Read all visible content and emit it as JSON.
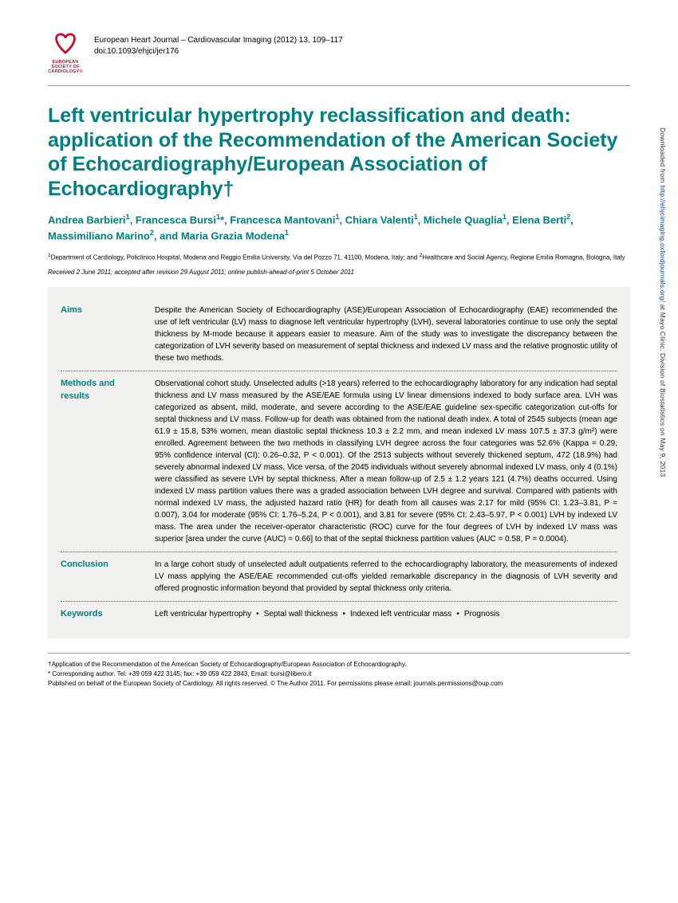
{
  "colors": {
    "teal": "#008080",
    "logo_red": "#c8102e",
    "abstract_bg": "#f0f0ee",
    "rule": "#999999",
    "link": "#0645ad"
  },
  "logo": {
    "org_line1": "EUROPEAN",
    "org_line2": "SOCIETY OF",
    "org_line3": "CARDIOLOGY®"
  },
  "journal": {
    "citation": "European Heart Journal – Cardiovascular Imaging (2012) 13, 109–117",
    "doi": "doi:10.1093/ehjci/jer176"
  },
  "title": "Left ventricular hypertrophy reclassification and death: application of the Recommendation of the American Society of Echocardiography/European Association of Echocardiography†",
  "authors_html": "Andrea Barbieri<sup>1</sup>, Francesca Bursi<sup>1</sup>*, Francesca Mantovani<sup>1</sup>, Chiara Valenti<sup>1</sup>, Michele Quaglia<sup>1</sup>, Elena Berti<sup>2</sup>, Massimiliano Marino<sup>2</sup>, and Maria Grazia Modena<sup>1</sup>",
  "affiliations_html": "<sup>1</sup>Department of Cardiology, Policlinico Hospital, Modena and Reggio Emilia University, Via del Pozzo 71, 41100, Modena, Italy; and <sup>2</sup>Healthcare and Social Agency, Regione Emilia Romagna, Bologna, Italy",
  "dates": "Received 2 June 2011; accepted after revision 29 August 2011; online publish-ahead-of-print 5 October 2011",
  "abstract": {
    "aims": {
      "label": "Aims",
      "text": "Despite the American Society of Echocardiography (ASE)/European Association of Echocardiography (EAE) recommended the use of left ventricular (LV) mass to diagnose left ventricular hypertrophy (LVH), several laboratories continue to use only the septal thickness by M-mode because it appears easier to measure. Aim of the study was to investigate the discrepancy between the categorization of LVH severity based on measurement of septal thickness and indexed LV mass and the relative prognostic utility of these two methods."
    },
    "methods": {
      "label": "Methods and results",
      "text": "Observational cohort study. Unselected adults (>18 years) referred to the echocardiography laboratory for any indication had septal thickness and LV mass measured by the ASE/EAE formula using LV linear dimensions indexed to body surface area. LVH was categorized as absent, mild, moderate, and severe according to the ASE/EAE guideline sex-specific categorization cut-offs for septal thickness and LV mass. Follow-up for death was obtained from the national death index. A total of 2545 subjects (mean age 61.9 ± 15.8, 53% women, mean diastolic septal thickness 10.3 ± 2.2 mm, and mean indexed LV mass 107.5 ± 37.3 g/m²) were enrolled. Agreement between the two methods in classifying LVH degree across the four categories was 52.6% (Kappa = 0.29, 95% confidence interval (CI): 0.26–0.32, P < 0.001). Of the 2513 subjects without severely thickened septum, 472 (18.9%) had severely abnormal indexed LV mass. Vice versa, of the 2045 individuals without severely abnormal indexed LV mass, only 4 (0.1%) were classified as severe LVH by septal thickness. After a mean follow-up of 2.5 ± 1.2 years 121 (4.7%) deaths occurred. Using indexed LV mass partition values there was a graded association between LVH degree and survival. Compared with patients with normal indexed LV mass, the adjusted hazard ratio (HR) for death from all causes was 2.17 for mild (95% CI: 1.23–3.81, P = 0.007), 3.04 for moderate (95% CI: 1.76–5.24, P < 0.001), and 3.81 for severe (95% CI: 2.43–5.97, P < 0.001) LVH by indexed LV mass. The area under the receiver-operator characteristic (ROC) curve for the four degrees of LVH by indexed LV mass was superior [area under the curve (AUC) = 0.66] to that of the septal thickness partition values (AUC = 0.58, P = 0.0004)."
    },
    "conclusion": {
      "label": "Conclusion",
      "text": "In a large cohort study of unselected adult outpatients referred to the echocardiography laboratory, the measurements of indexed LV mass applying the ASE/EAE recommended cut-offs yielded remarkable discrepancy in the diagnosis of LVH severity and offered prognostic information beyond that provided by septal thickness only criteria."
    },
    "keywords": {
      "label": "Keywords",
      "items": [
        "Left ventricular hypertrophy",
        "Septal wall thickness",
        "Indexed left ventricular mass",
        "Prognosis"
      ]
    }
  },
  "footnotes": {
    "dagger": "†Application of the Recommendation of the American Society of Echocardiography/European Association of Echocardiography.",
    "corresponding": "* Corresponding author. Tel: +39 059 422 3145; fax: +39 059 422 2843, Email: bursi@libero.it",
    "published": "Published on behalf of the European Society of Cardiology. All rights reserved. © The Author 2011. For permissions please email: journals.permissions@oup.com"
  },
  "sidenote": {
    "prefix": "Downloaded from ",
    "url": "http://ehjcimaging.oxfordjournals.org/",
    "suffix": " at Mayo Clinic, Division of Biostatistics on May 9, 2013"
  }
}
